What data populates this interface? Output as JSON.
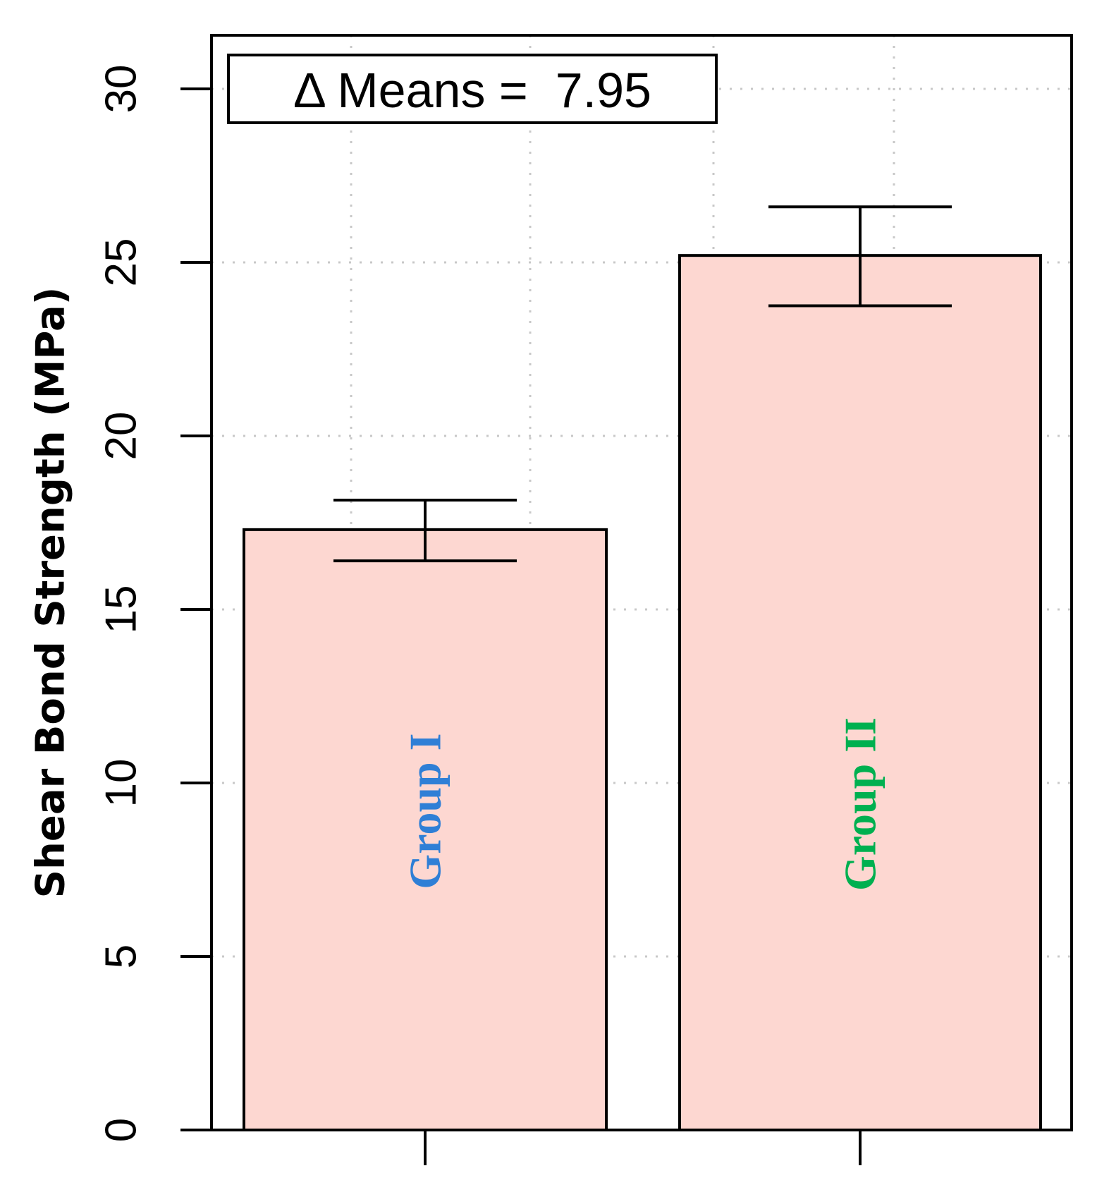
{
  "chart_data": {
    "type": "bar",
    "categories": [
      "Group I",
      "Group II"
    ],
    "values": [
      17.3,
      25.2
    ],
    "error_bars": [
      {
        "low": 16.4,
        "high": 18.15
      },
      {
        "low": 23.75,
        "high": 26.6
      }
    ],
    "title": "",
    "xlabel": "",
    "ylabel": "Shear Bond Strength (MPa)",
    "ylim": [
      0,
      31.5
    ],
    "yticks": [
      "0",
      "5",
      "10",
      "15",
      "20",
      "25",
      "30"
    ],
    "grid": true,
    "annotation": "Δ Means =  7.95",
    "bar_color": "#fdd7d1",
    "label_colors": [
      "#2f7fd6",
      "#00b050"
    ]
  }
}
